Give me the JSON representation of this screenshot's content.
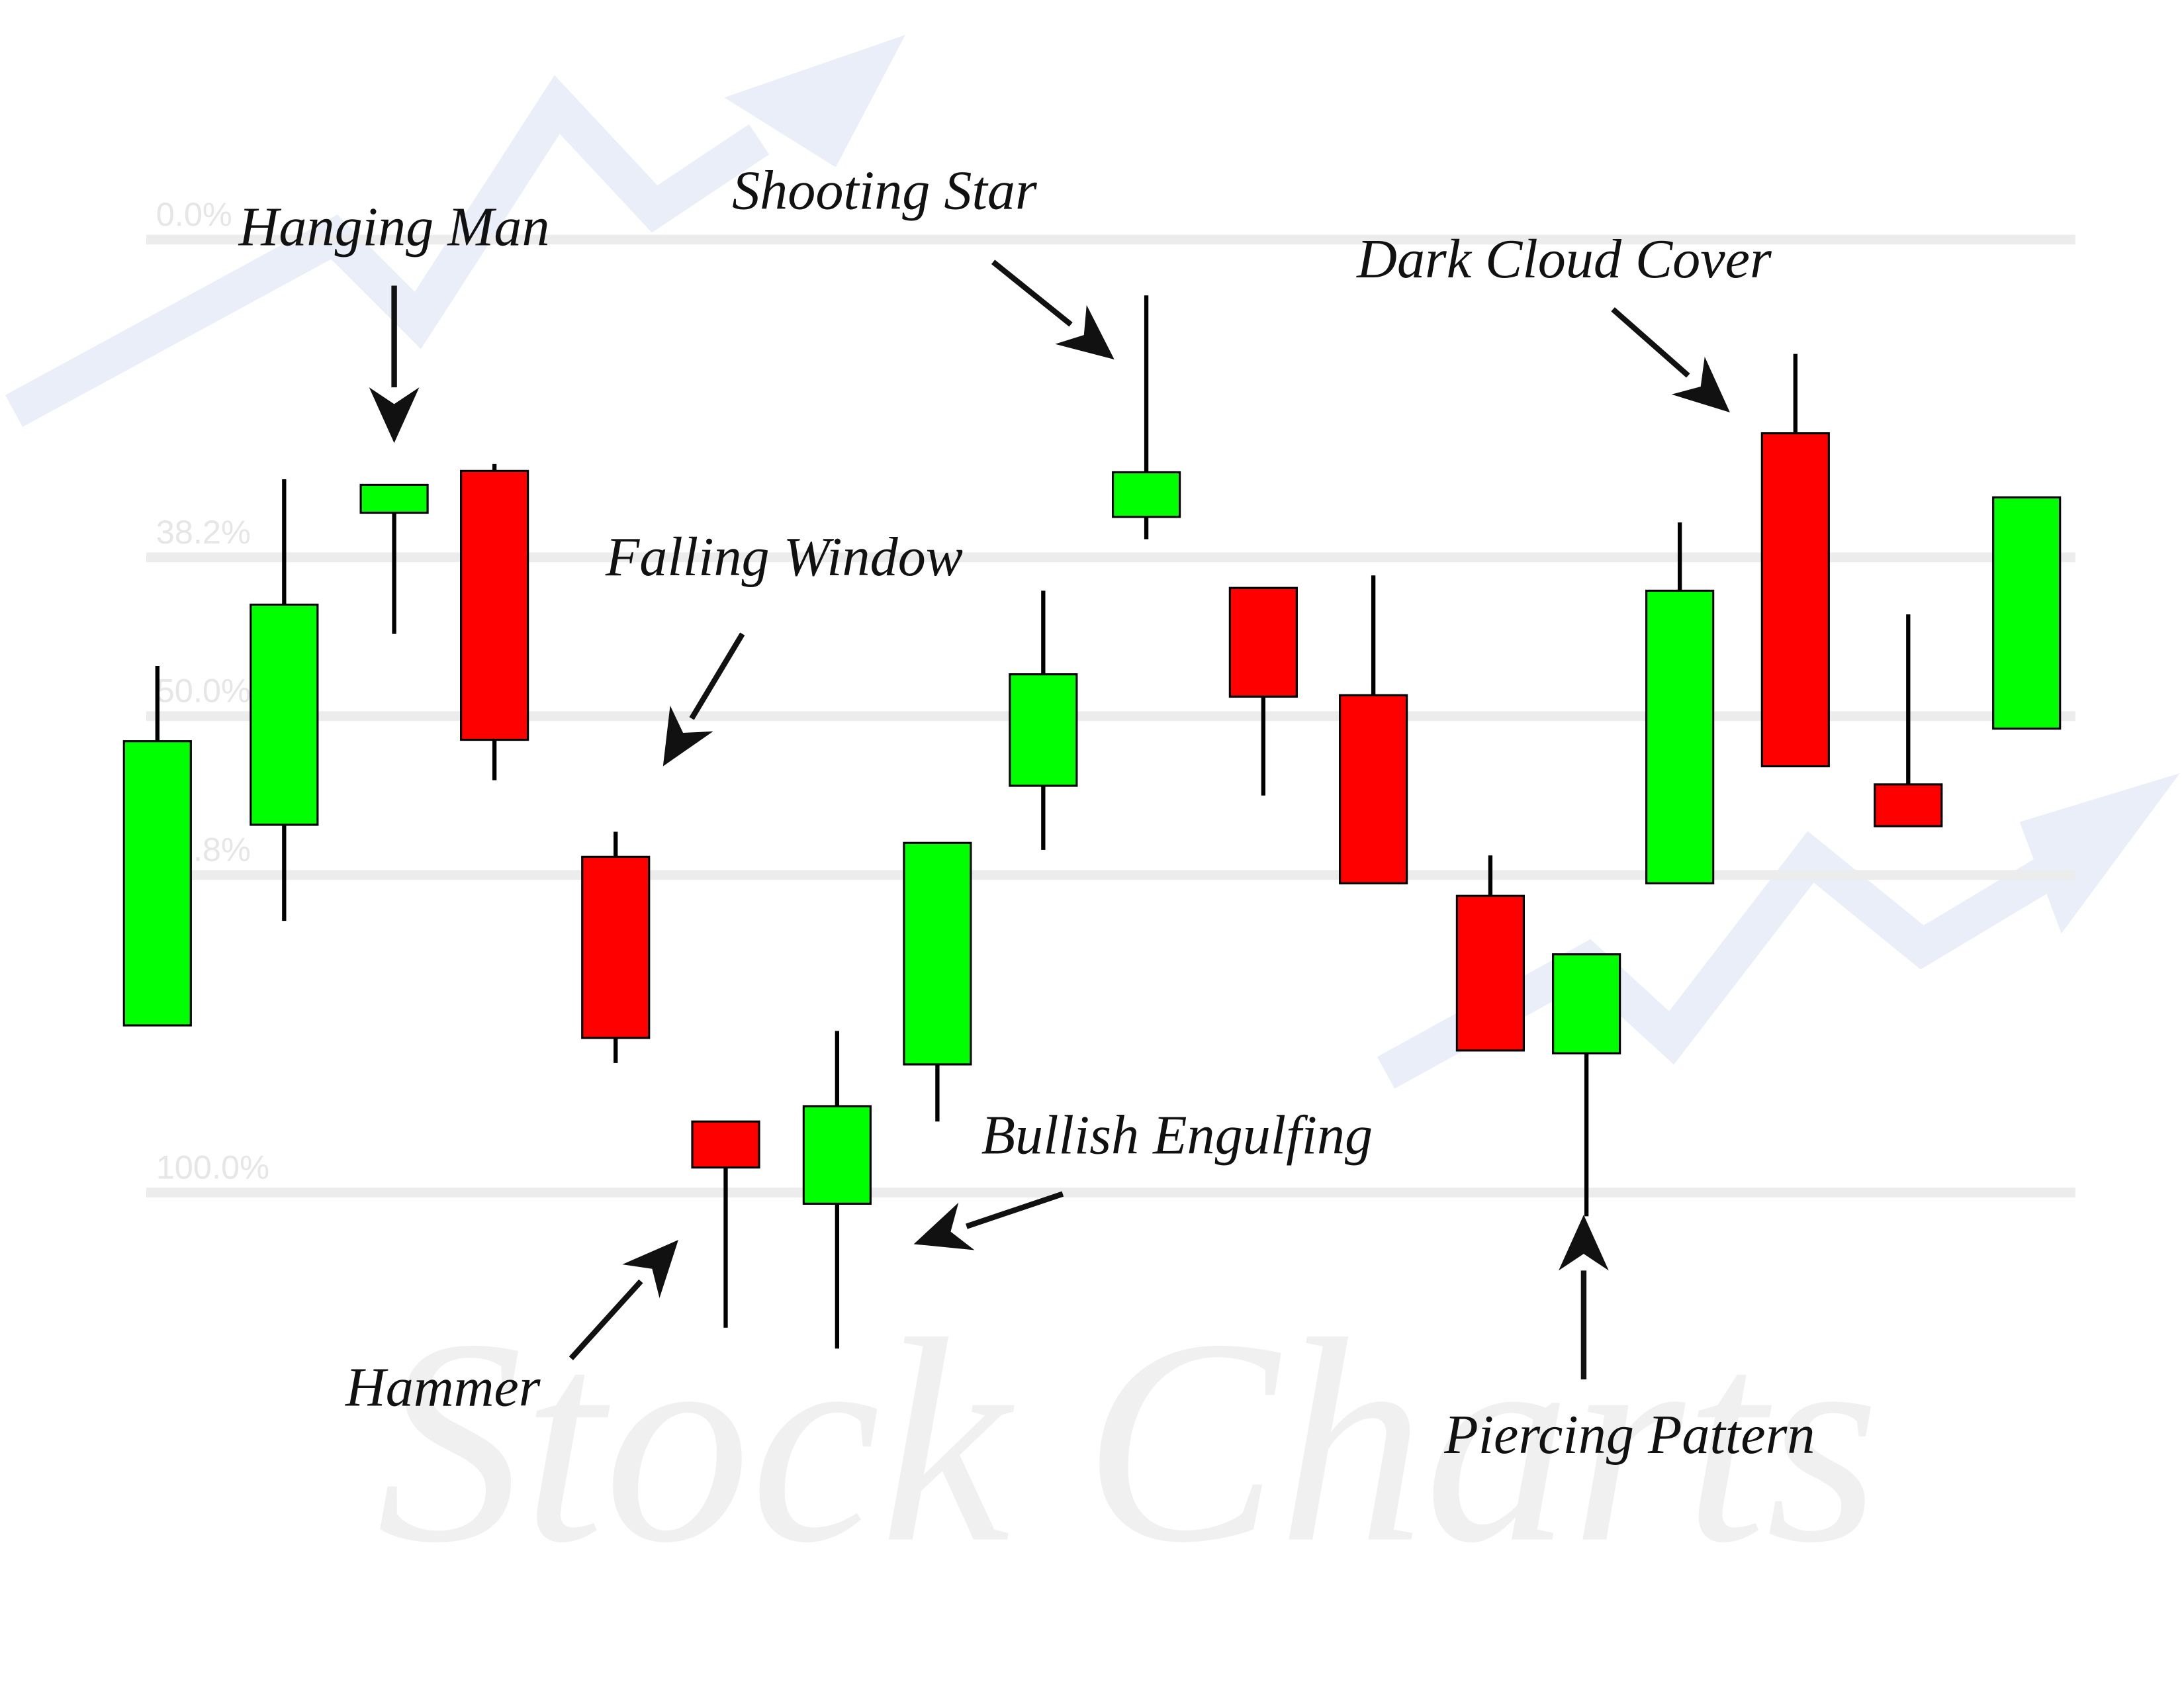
{
  "watermark": {
    "title": "Stock Charts",
    "fib_levels": [
      "0.0%",
      "38.2%",
      "50.0%",
      "61.8%",
      "100.0%"
    ]
  },
  "annotations": [
    "Hanging Man",
    "Shooting Star",
    "Falling Window",
    "Dark Cloud Cover",
    "Bullish Engulfing",
    "Hammer",
    "Piercing Pattern"
  ]
}
